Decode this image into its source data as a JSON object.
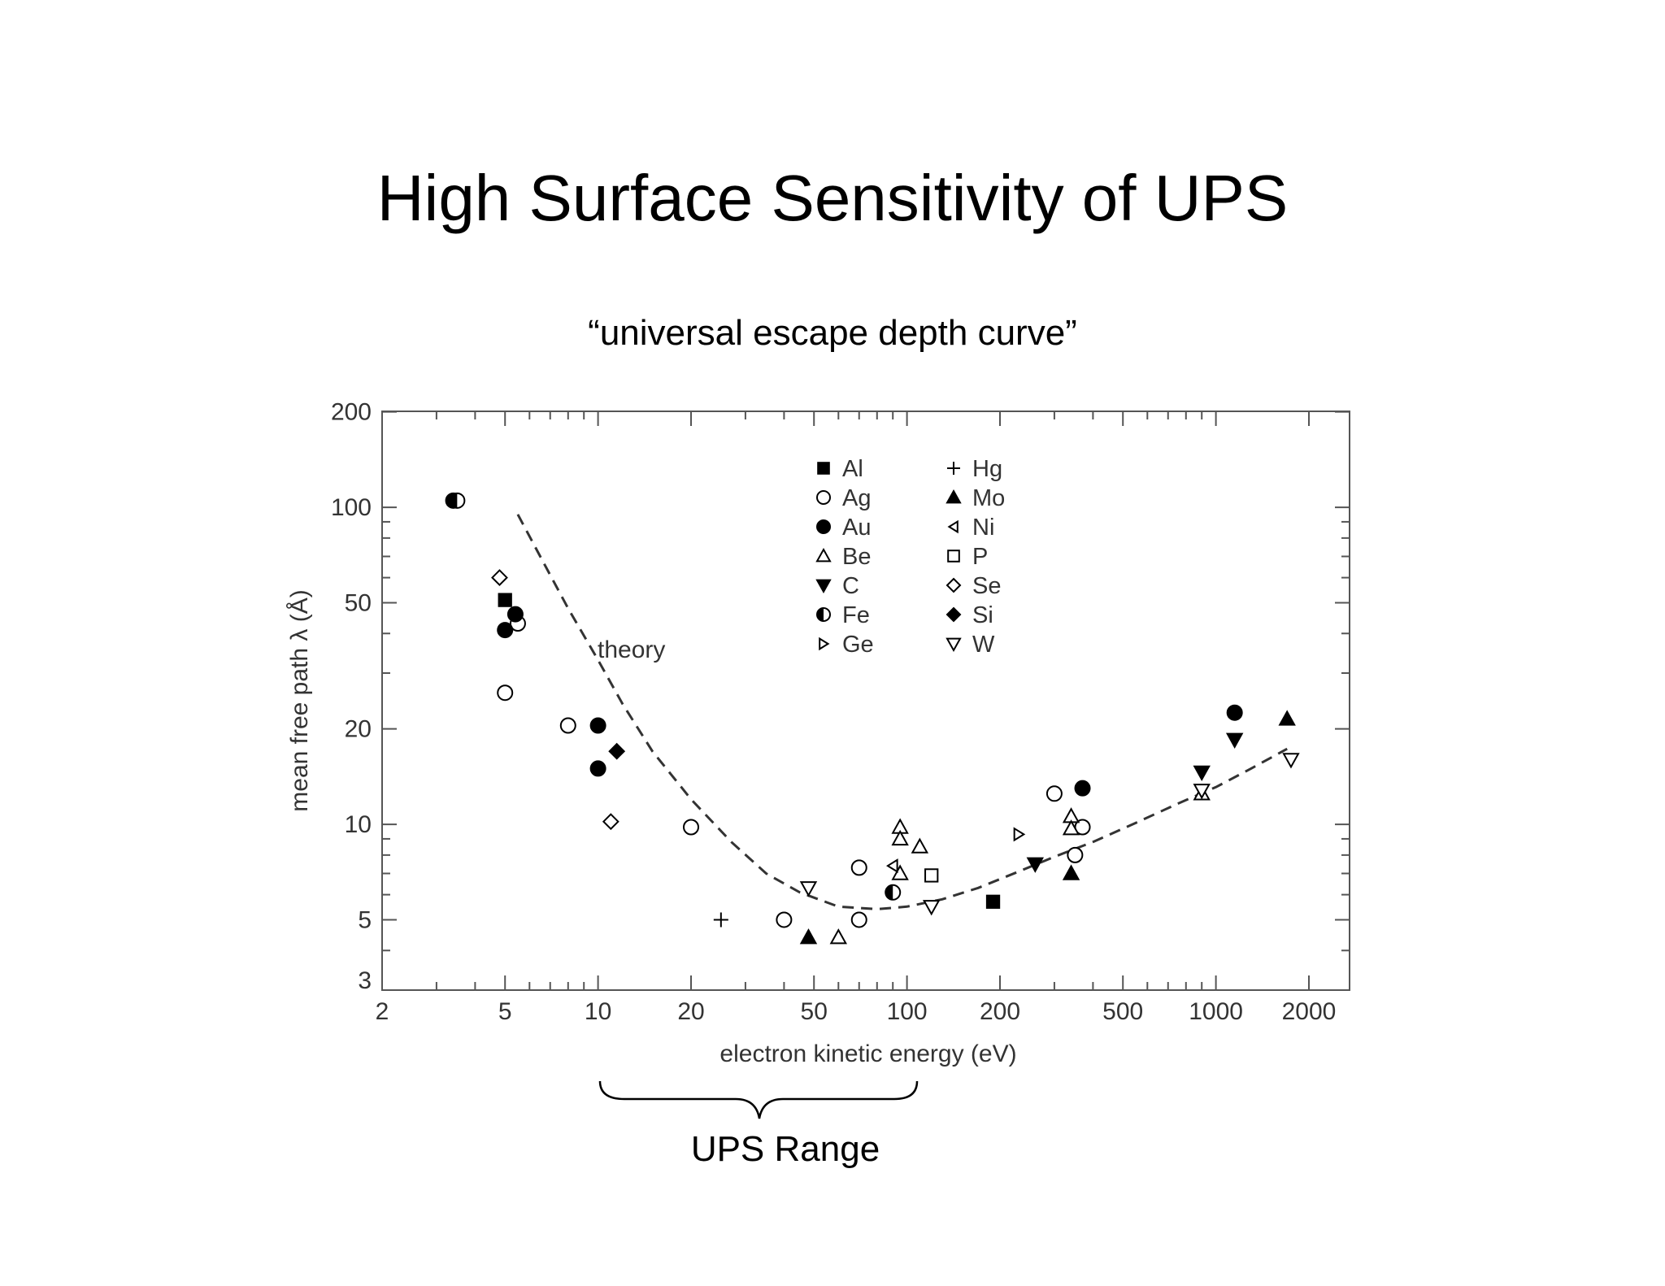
{
  "slide": {
    "title": "High Surface Sensitivity of UPS",
    "subtitle": "“universal escape depth curve”",
    "range_label": "UPS Range"
  },
  "chart_data": {
    "type": "scatter",
    "title": "",
    "xlabel": "electron kinetic energy  (eV)",
    "ylabel": "mean free path λ  (Å)",
    "x_scale": "log",
    "y_scale": "log",
    "xlim": [
      2,
      3000
    ],
    "ylim": [
      3,
      200
    ],
    "x_ticks": [
      2,
      5,
      10,
      20,
      50,
      100,
      200,
      500,
      1000,
      2000
    ],
    "y_ticks": [
      3,
      5,
      10,
      20,
      50,
      100,
      200
    ],
    "grid": false,
    "legend_position": "top-center",
    "theory_label": "theory",
    "theory_curve": [
      [
        5.5,
        95
      ],
      [
        6.5,
        70
      ],
      [
        8,
        48
      ],
      [
        10,
        33
      ],
      [
        12,
        24
      ],
      [
        15,
        17
      ],
      [
        20,
        12
      ],
      [
        27,
        8.8
      ],
      [
        35,
        7
      ],
      [
        45,
        6.1
      ],
      [
        60,
        5.5
      ],
      [
        80,
        5.4
      ],
      [
        100,
        5.5
      ],
      [
        130,
        5.8
      ],
      [
        170,
        6.3
      ],
      [
        230,
        7.1
      ],
      [
        300,
        7.9
      ],
      [
        400,
        8.8
      ],
      [
        550,
        10.1
      ],
      [
        750,
        11.6
      ],
      [
        1000,
        13.1
      ],
      [
        1300,
        15
      ],
      [
        1700,
        17.3
      ]
    ],
    "series": [
      {
        "name": "Al",
        "marker": "square",
        "fill": "filled",
        "points": [
          [
            5,
            51
          ],
          [
            190,
            5.7
          ]
        ]
      },
      {
        "name": "Ag",
        "marker": "circle",
        "fill": "open",
        "points": [
          [
            5,
            26
          ],
          [
            5.5,
            43
          ],
          [
            8,
            20.5
          ],
          [
            20,
            9.8
          ],
          [
            40,
            5
          ],
          [
            70,
            7.3
          ],
          [
            70,
            5
          ],
          [
            300,
            12.5
          ],
          [
            350,
            8
          ],
          [
            370,
            9.8
          ]
        ]
      },
      {
        "name": "Au",
        "marker": "circle",
        "fill": "filled",
        "points": [
          [
            5,
            41
          ],
          [
            5.4,
            46
          ],
          [
            10,
            20.5
          ],
          [
            10,
            15
          ],
          [
            370,
            13
          ],
          [
            1150,
            22.5
          ]
        ]
      },
      {
        "name": "Be",
        "marker": "triangle-up",
        "fill": "open",
        "points": [
          [
            60,
            4.4
          ],
          [
            95,
            9.8
          ],
          [
            95,
            9
          ],
          [
            95,
            7
          ],
          [
            110,
            8.5
          ],
          [
            340,
            10.6
          ],
          [
            340,
            9.7
          ],
          [
            900,
            12.5
          ]
        ]
      },
      {
        "name": "C",
        "marker": "triangle-down",
        "fill": "filled",
        "points": [
          [
            260,
            7.5
          ],
          [
            900,
            14.6
          ],
          [
            1150,
            18.5
          ]
        ]
      },
      {
        "name": "Fe",
        "marker": "half-circle",
        "fill": "half",
        "points": [
          [
            3.4,
            105
          ],
          [
            3.5,
            105
          ],
          [
            90,
            6.1
          ]
        ]
      },
      {
        "name": "Ge",
        "marker": "triangle-right",
        "fill": "open",
        "points": [
          [
            230,
            9.3
          ]
        ]
      },
      {
        "name": "Hg",
        "marker": "plus",
        "fill": "open",
        "points": [
          [
            25,
            5
          ]
        ]
      },
      {
        "name": "Mo",
        "marker": "triangle-up",
        "fill": "filled",
        "points": [
          [
            48,
            4.4
          ],
          [
            340,
            7
          ],
          [
            1700,
            21.5
          ]
        ]
      },
      {
        "name": "Ni",
        "marker": "triangle-left",
        "fill": "open",
        "points": [
          [
            90,
            7.4
          ]
        ]
      },
      {
        "name": "P",
        "marker": "square",
        "fill": "open",
        "points": [
          [
            120,
            6.9
          ]
        ]
      },
      {
        "name": "Se",
        "marker": "diamond",
        "fill": "open",
        "points": [
          [
            4.8,
            60
          ],
          [
            11,
            10.2
          ]
        ]
      },
      {
        "name": "Si",
        "marker": "diamond",
        "fill": "filled",
        "points": [
          [
            11.5,
            17
          ]
        ]
      },
      {
        "name": "W",
        "marker": "triangle-down",
        "fill": "open",
        "points": [
          [
            48,
            6.3
          ],
          [
            120,
            5.5
          ],
          [
            900,
            12.8
          ],
          [
            1750,
            16
          ]
        ]
      }
    ]
  }
}
